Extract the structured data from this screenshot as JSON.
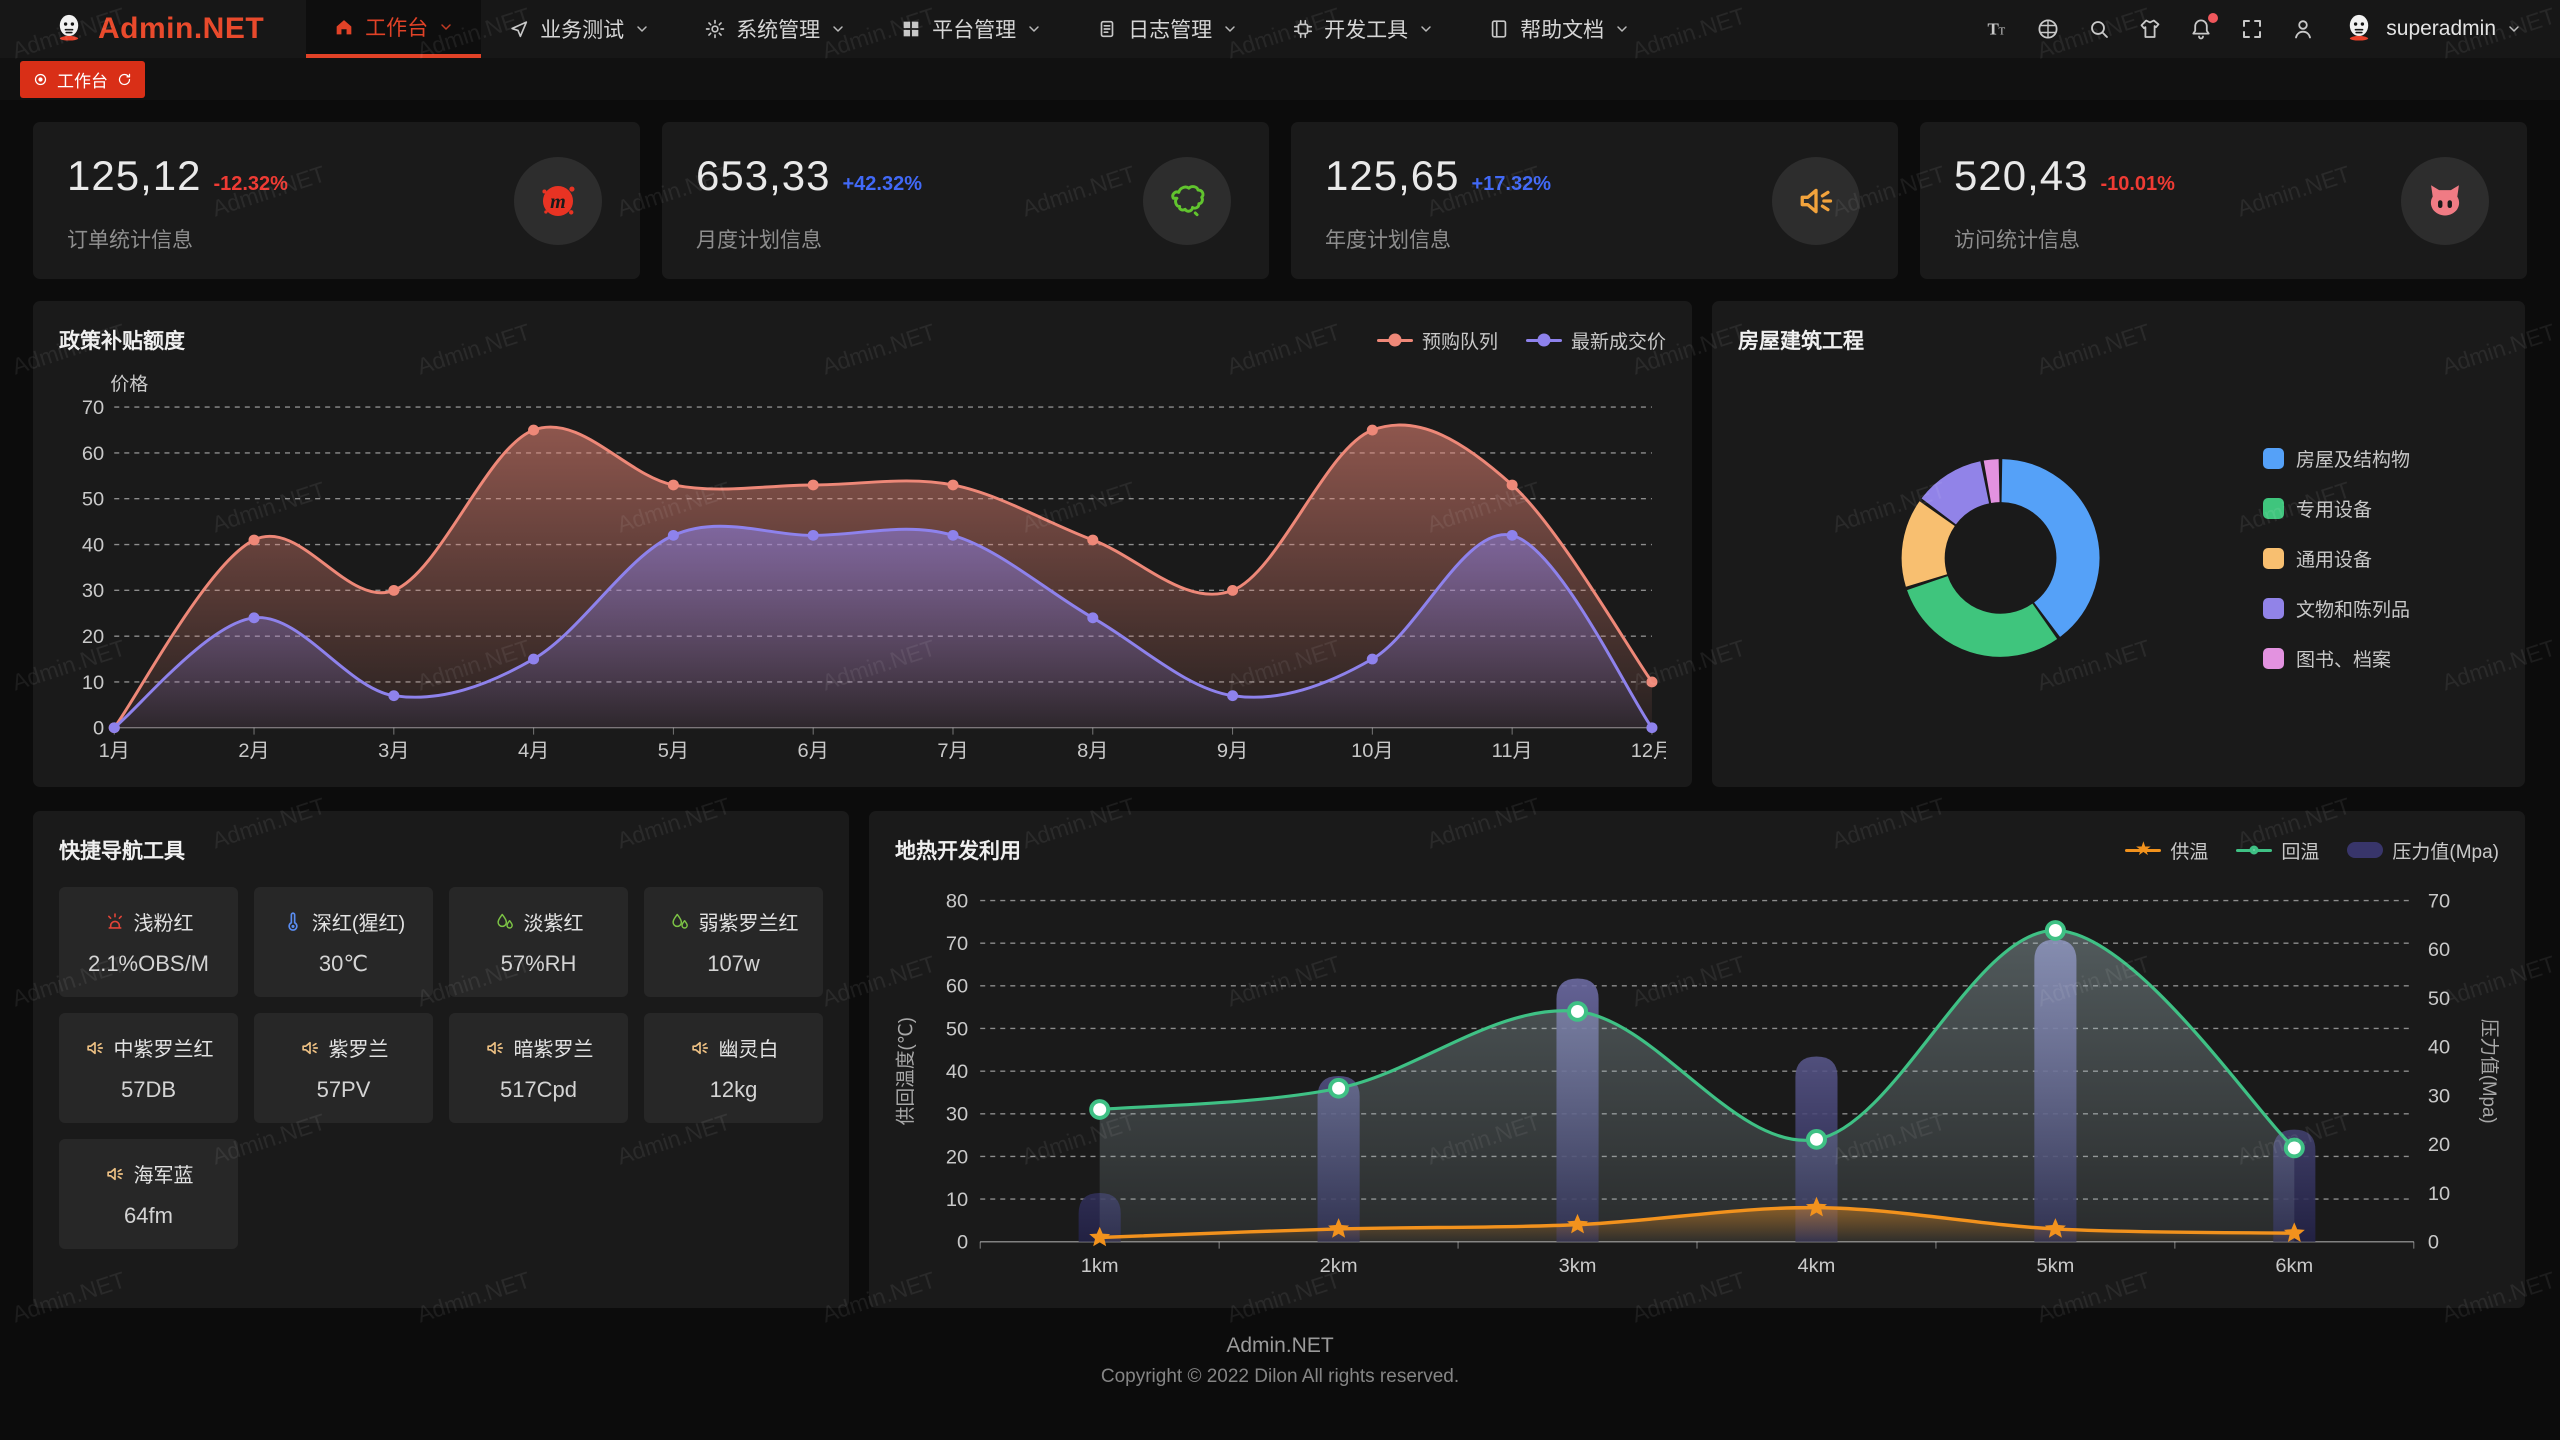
{
  "navbar": {
    "logo_text": "Admin.NET",
    "logo_icon": "penguin",
    "chevron_icon": "chevron-down",
    "menu": [
      {
        "label": "工作台",
        "icon": "home",
        "active": true
      },
      {
        "label": "业务测试",
        "icon": "navigation",
        "active": false
      },
      {
        "label": "系统管理",
        "icon": "gear",
        "active": false
      },
      {
        "label": "平台管理",
        "icon": "grid",
        "active": false
      },
      {
        "label": "日志管理",
        "icon": "document",
        "active": false
      },
      {
        "label": "开发工具",
        "icon": "chip",
        "active": false
      },
      {
        "label": "帮助文档",
        "icon": "book",
        "active": false
      }
    ],
    "toolbar": [
      {
        "icon": "font-size"
      },
      {
        "icon": "language"
      },
      {
        "icon": "search"
      },
      {
        "icon": "theme"
      },
      {
        "icon": "notification",
        "badge": true
      },
      {
        "icon": "fullscreen"
      },
      {
        "icon": "user"
      }
    ],
    "user": {
      "name": "superadmin",
      "avatar_icon": "penguin"
    }
  },
  "tabbar": {
    "tabs": [
      {
        "label": "工作台",
        "active": true,
        "dot_icon": "dot-circle",
        "refresh_icon": "refresh"
      }
    ]
  },
  "stat_cards": [
    {
      "value": "125,12",
      "delta": "-12.32%",
      "delta_color": "#ef3b34",
      "label": "订单统计信息",
      "icon": "meetup",
      "icon_color": "#e83323"
    },
    {
      "value": "653,33",
      "delta": "+42.32%",
      "delta_color": "#4169f7",
      "label": "月度计划信息",
      "icon": "china-map",
      "icon_color": "#61c42e"
    },
    {
      "value": "125,65",
      "delta": "+17.32%",
      "delta_color": "#4169f7",
      "label": "年度计划信息",
      "icon": "speaker",
      "icon_color": "#f2a33c"
    },
    {
      "value": "520,43",
      "delta": "-10.01%",
      "delta_color": "#ef3b34",
      "label": "访问统计信息",
      "icon": "cat",
      "icon_color": "#f07b84"
    }
  ],
  "panels": {
    "quick_nav": {
      "title": "快捷导航工具",
      "items": [
        {
          "label": "浅粉红",
          "value": "2.1%OBS/M",
          "icon": "siren",
          "icon_color": "#e04438"
        },
        {
          "label": "深红(猩红)",
          "value": "30℃",
          "icon": "thermometer",
          "icon_color": "#5a8df2"
        },
        {
          "label": "淡紫红",
          "value": "57%RH",
          "icon": "humidity",
          "icon_color": "#7cc345"
        },
        {
          "label": "弱紫罗兰红",
          "value": "107w",
          "icon": "humidity",
          "icon_color": "#7cc345"
        },
        {
          "label": "中紫罗兰红",
          "value": "57DB",
          "icon": "speaker",
          "icon_color": "#eec184"
        },
        {
          "label": "紫罗兰",
          "value": "57PV",
          "icon": "speaker",
          "icon_color": "#eec184"
        },
        {
          "label": "暗紫罗兰",
          "value": "517Cpd",
          "icon": "speaker",
          "icon_color": "#eec184"
        },
        {
          "label": "幽灵白",
          "value": "12kg",
          "icon": "speaker",
          "icon_color": "#eec184"
        },
        {
          "label": "海军蓝",
          "value": "64fm",
          "icon": "speaker",
          "icon_color": "#eec184"
        }
      ]
    }
  },
  "chart_data": [
    {
      "type": "area",
      "title": "政策补贴额度",
      "ylabel": "价格",
      "x": [
        "1月",
        "2月",
        "3月",
        "4月",
        "5月",
        "6月",
        "7月",
        "8月",
        "9月",
        "10月",
        "11月",
        "12月"
      ],
      "ylim": [
        0,
        70
      ],
      "yticks": [
        0,
        10,
        20,
        30,
        40,
        50,
        60,
        70
      ],
      "grid": "dashed",
      "legend_position": "top-right",
      "series": [
        {
          "name": "预购队列",
          "color": "#ee8878",
          "values": [
            0,
            41,
            30,
            65,
            53,
            53,
            53,
            41,
            30,
            65,
            53,
            10
          ]
        },
        {
          "name": "最新成交价",
          "color": "#8e82ec",
          "values": [
            0,
            24,
            7,
            15,
            42,
            42,
            42,
            24,
            7,
            15,
            42,
            0
          ]
        }
      ]
    },
    {
      "type": "pie",
      "title": "房屋建筑工程",
      "legend_position": "right",
      "slices": [
        {
          "label": "房屋及结构物",
          "value": 40,
          "color": "#55a1f8"
        },
        {
          "label": "专用设备",
          "value": 30,
          "color": "#3fc57d"
        },
        {
          "label": "通用设备",
          "value": 15,
          "color": "#f8bf70"
        },
        {
          "label": "文物和陈列品",
          "value": 12,
          "color": "#9183e8"
        },
        {
          "label": "图书、档案",
          "value": 3,
          "color": "#e392e0"
        }
      ]
    },
    {
      "type": "mixed",
      "title": "地热开发利用",
      "x": [
        "1km",
        "2km",
        "3km",
        "4km",
        "5km",
        "6km"
      ],
      "left_axis": {
        "label": "供回温度(℃)",
        "max": 80,
        "ticks": [
          0,
          10,
          20,
          30,
          40,
          50,
          60,
          70,
          80
        ]
      },
      "right_axis": {
        "label": "压力值(Mpa)",
        "max": 70,
        "ticks": [
          0,
          10,
          20,
          30,
          40,
          50,
          60,
          70
        ]
      },
      "legend_position": "top-right",
      "series": [
        {
          "name": "供温",
          "type": "line",
          "marker": "star",
          "axis": "left",
          "color": "#f2921d",
          "values": [
            1,
            3,
            4,
            8,
            3,
            2
          ]
        },
        {
          "name": "回温",
          "type": "line",
          "marker": "circle",
          "axis": "left",
          "color": "#3fc185",
          "values": [
            31,
            36,
            54,
            24,
            73,
            22
          ]
        },
        {
          "name": "压力值(Mpa)",
          "type": "bar",
          "axis": "right",
          "color": "#38356a",
          "values": [
            10,
            34,
            54,
            38,
            62,
            23
          ]
        }
      ]
    }
  ],
  "footer": {
    "line1": "Admin.NET",
    "line2": "Copyright © 2022 Dilon All rights reserved."
  },
  "watermark": {
    "text": "Admin.NET"
  }
}
